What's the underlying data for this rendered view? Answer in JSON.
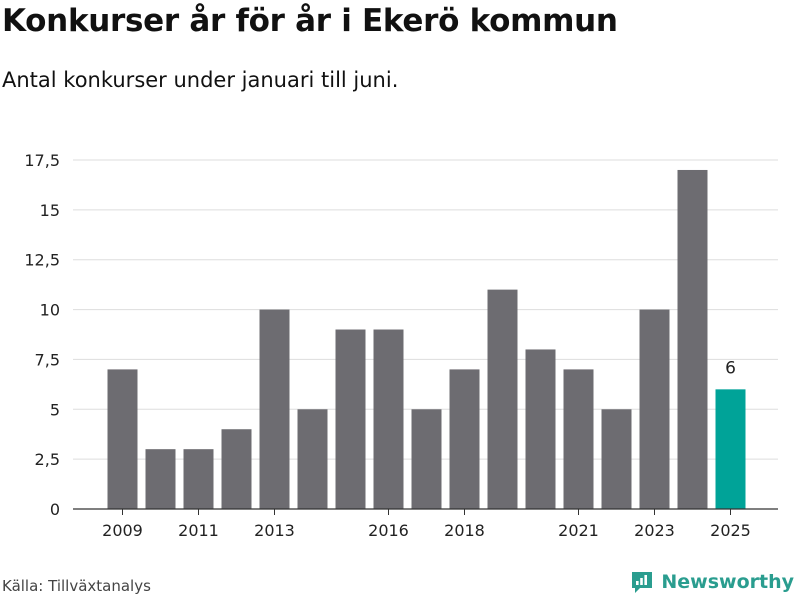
{
  "header": {
    "title": "Konkurser år för år i Ekerö kommun",
    "subtitle": "Antal konkurser under januari till juni."
  },
  "footer": {
    "source": "Källa: Tillväxtanalys",
    "brand": "Newsworthy"
  },
  "colors": {
    "bar": "#6d6c71",
    "highlight": "#00a398",
    "grid": "#dddddd",
    "brand": "#2a9d8f"
  },
  "chart_data": {
    "type": "bar",
    "title": "Konkurser år för år i Ekerö kommun",
    "subtitle": "Antal konkurser under januari till juni.",
    "xlabel": "",
    "ylabel": "",
    "categories": [
      "2009",
      "2010",
      "2011",
      "2012",
      "2013",
      "2014",
      "2015",
      "2016",
      "2017",
      "2018",
      "2019",
      "2020",
      "2021",
      "2022",
      "2023",
      "2024",
      "2025"
    ],
    "values": [
      7,
      3,
      3,
      4,
      10,
      5,
      9,
      9,
      5,
      7,
      11,
      8,
      7,
      5,
      10,
      17,
      6
    ],
    "ylim": [
      0,
      17.5
    ],
    "y_ticks": [
      0,
      2.5,
      5,
      7.5,
      10,
      12.5,
      15,
      17.5
    ],
    "y_tick_labels": [
      "0",
      "2,5",
      "5",
      "7,5",
      "10",
      "12,5",
      "15",
      "17,5"
    ],
    "x_tick_labels": [
      "2009",
      "2011",
      "2013",
      "2016",
      "2018",
      "2021",
      "2023",
      "2025"
    ],
    "highlight_category": "2025",
    "data_labels": [
      {
        "category": "2025",
        "text": "6"
      }
    ],
    "grid": true,
    "legend": "none"
  }
}
